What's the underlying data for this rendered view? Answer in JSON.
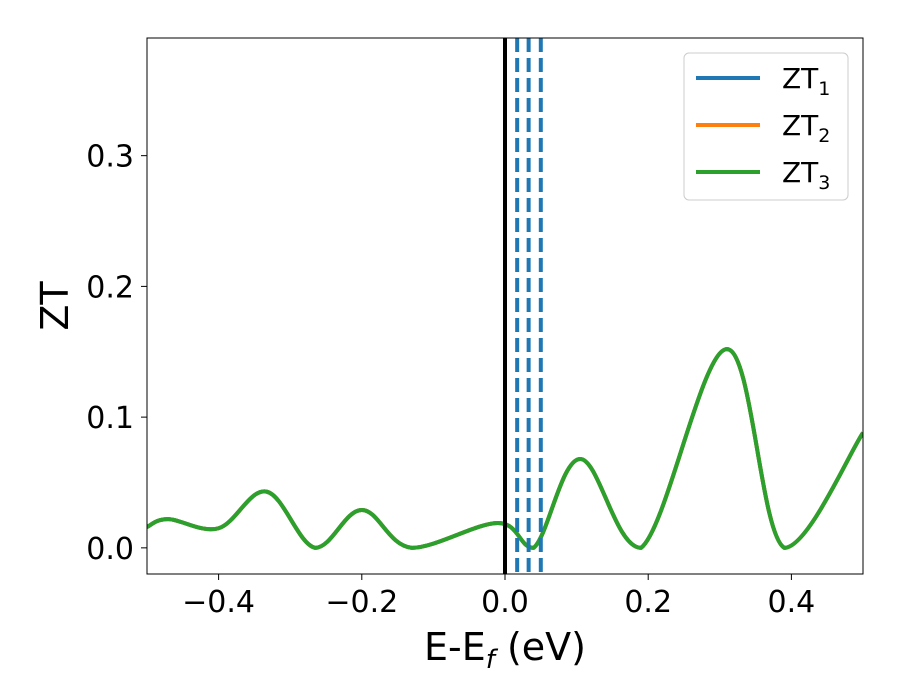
{
  "chart_data": {
    "type": "line",
    "xlabel": "E-E",
    "xlabel_sub": "f",
    "xlabel_unit": " (eV)",
    "ylabel": "ZT",
    "xlim": [
      -0.5,
      0.5
    ],
    "ylim": [
      -0.02,
      0.39
    ],
    "xticks": [
      -0.4,
      -0.2,
      0.0,
      0.2,
      0.4
    ],
    "xtick_labels": [
      "−0.4",
      "−0.2",
      "0.0",
      "0.2",
      "0.4"
    ],
    "yticks": [
      0.0,
      0.1,
      0.2,
      0.3
    ],
    "ytick_labels": [
      "0.0",
      "0.1",
      "0.2",
      "0.3"
    ],
    "legend_position": "top-right",
    "series": [
      {
        "name": "ZT",
        "name_sub": "1",
        "color": "#1f77b4",
        "x": [
          -0.5,
          -0.47,
          -0.4,
          -0.333,
          -0.265,
          -0.2,
          -0.13,
          -0.01,
          0.04,
          0.105,
          0.19,
          0.31,
          0.39,
          0.5
        ],
        "y": [
          0.016,
          0.022,
          0.015,
          0.043,
          0.0,
          0.029,
          0.0,
          0.019,
          0.0,
          0.068,
          0.0,
          0.152,
          0.0,
          0.088
        ]
      },
      {
        "name": "ZT",
        "name_sub": "2",
        "color": "#ff7f0e",
        "x": [
          -0.5,
          -0.47,
          -0.4,
          -0.333,
          -0.265,
          -0.2,
          -0.13,
          -0.01,
          0.04,
          0.105,
          0.19,
          0.31,
          0.39,
          0.5
        ],
        "y": [
          0.016,
          0.022,
          0.015,
          0.043,
          0.0,
          0.029,
          0.0,
          0.019,
          0.0,
          0.068,
          0.0,
          0.152,
          0.0,
          0.088
        ]
      },
      {
        "name": "ZT",
        "name_sub": "3",
        "color": "#2ca02c",
        "x": [
          -0.5,
          -0.47,
          -0.4,
          -0.333,
          -0.265,
          -0.2,
          -0.13,
          -0.01,
          0.04,
          0.105,
          0.19,
          0.31,
          0.39,
          0.5
        ],
        "y": [
          0.016,
          0.022,
          0.015,
          0.043,
          0.0,
          0.029,
          0.0,
          0.019,
          0.0,
          0.068,
          0.0,
          0.152,
          0.0,
          0.088
        ]
      }
    ],
    "vertical_lines": [
      {
        "x": 0.0,
        "color": "#000000",
        "style": "solid"
      },
      {
        "x": 0.017,
        "color": "#1f77b4",
        "style": "dashed"
      },
      {
        "x": 0.033,
        "color": "#1f77b4",
        "style": "dashed"
      },
      {
        "x": 0.05,
        "color": "#1f77b4",
        "style": "dashed"
      }
    ]
  }
}
